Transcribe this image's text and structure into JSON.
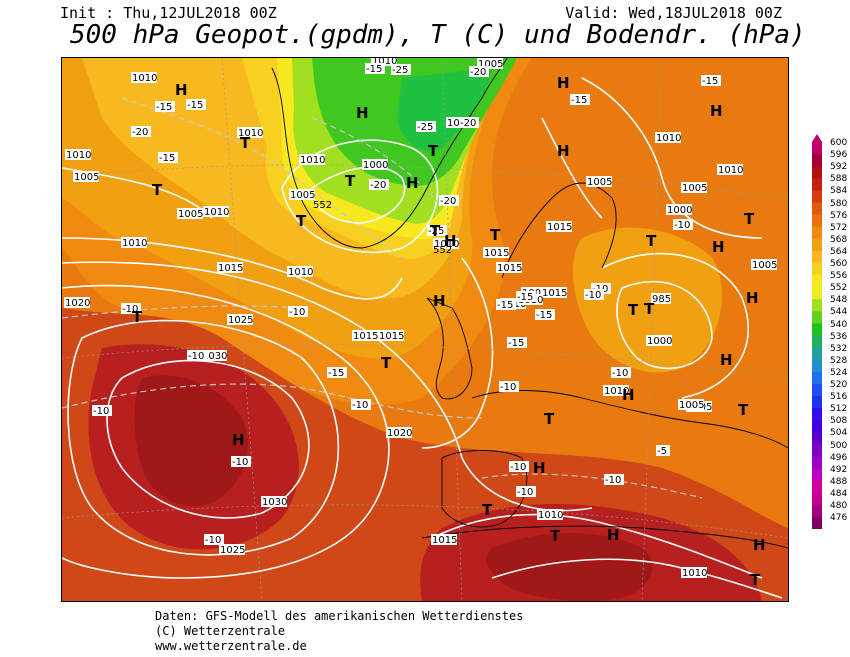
{
  "header": {
    "init": "Init : Thu,12JUL2018 00Z",
    "valid": "Valid: Wed,18JUL2018 00Z",
    "title": "500 hPa Geopot.(gpdm), T (C) und Bodendr. (hPa)"
  },
  "legend": {
    "levels": [
      "600",
      "596",
      "592",
      "588",
      "584",
      "580",
      "576",
      "572",
      "568",
      "564",
      "560",
      "556",
      "552",
      "548",
      "544",
      "540",
      "536",
      "532",
      "528",
      "524",
      "520",
      "516",
      "512",
      "508",
      "504",
      "500",
      "496",
      "492",
      "488",
      "484",
      "480",
      "476"
    ],
    "colors": [
      "#c0006a",
      "#a0003a",
      "#b01010",
      "#c82010",
      "#d83a10",
      "#e05a10",
      "#e87010",
      "#f08a10",
      "#f0a010",
      "#f8b820",
      "#f8d020",
      "#f8e820",
      "#e8f020",
      "#a0e020",
      "#60d020",
      "#20c020",
      "#20b060",
      "#20a0a0",
      "#2090d0",
      "#2070f0",
      "#2050f0",
      "#2030f0",
      "#3010f0",
      "#4000e0",
      "#6000d0",
      "#8000c0",
      "#a000c0",
      "#c000c0",
      "#d000a0",
      "#c00090",
      "#a00080",
      "#800060"
    ]
  },
  "map": {
    "pressure_labels": [
      "1010",
      "1010",
      "1010",
      "1005",
      "1005",
      "1010",
      "1010",
      "1005",
      "1010",
      "1020",
      "1015",
      "1010",
      "1025",
      "1030",
      "1015",
      "1015",
      "1015",
      "1015",
      "1020",
      "1005",
      "1010",
      "1000",
      "985",
      "1000",
      "1005",
      "1010",
      "1005",
      "1010",
      "1030",
      "1025",
      "1015",
      "1010",
      "1010",
      "1000",
      "1005",
      "1015",
      "1010",
      "1010",
      "1010",
      "1015",
      "1010",
      "1005",
      "1000",
      "1010",
      "1005"
    ],
    "temp_labels": [
      "-15",
      "-15",
      "-20",
      "-15",
      "-15",
      "-20",
      "-25",
      "-25",
      "-20",
      "-20",
      "-25",
      "-20",
      "-15",
      "-10",
      "-10",
      "-10",
      "-10",
      "-10",
      "-15",
      "-10",
      "-15",
      "-10",
      "-15",
      "-15",
      "-15",
      "-10",
      "-10",
      "-10",
      "-10",
      "-10",
      "-10",
      "-10",
      "-5",
      "-10",
      "-15"
    ],
    "height_labels": [
      "552",
      "552"
    ],
    "highs": [
      "H",
      "H",
      "H",
      "H",
      "H",
      "H",
      "H",
      "H",
      "H",
      "H",
      "H",
      "H",
      "H",
      "H",
      "H",
      "H"
    ],
    "lows": [
      "T",
      "T",
      "T",
      "T",
      "T",
      "T",
      "T",
      "T",
      "T",
      "T",
      "T",
      "T",
      "T",
      "T",
      "T",
      "T",
      "T",
      "T"
    ]
  },
  "footer": {
    "line1": "Daten: GFS-Modell des amerikanischen Wetterdienstes",
    "line2": "(C) Wetterzentrale",
    "line3": "www.wetterzentrale.de"
  }
}
